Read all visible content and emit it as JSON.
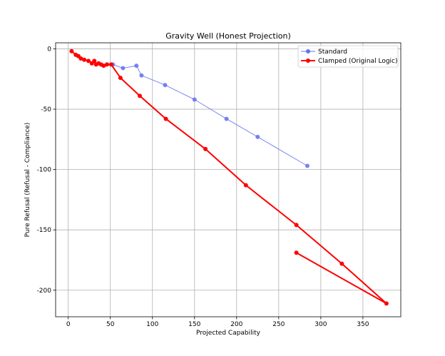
{
  "chart_data": {
    "type": "line",
    "title": "Gravity Well (Honest Projection)",
    "xlabel": "Projected Capability",
    "ylabel": "Pure Refusal (Refusal - Compliance)",
    "xlim": [
      -15,
      395
    ],
    "ylim": [
      -222,
      5
    ],
    "xticks": [
      0,
      50,
      100,
      150,
      200,
      250,
      300,
      350
    ],
    "yticks": [
      0,
      -50,
      -100,
      -150,
      -200
    ],
    "grid": true,
    "legend_position": "top-right",
    "series": [
      {
        "name": "Standard",
        "color": "#6272f0",
        "points": [
          [
            53,
            -13
          ],
          [
            65,
            -16
          ],
          [
            81,
            -14
          ],
          [
            87,
            -22
          ],
          [
            115,
            -30
          ],
          [
            150,
            -42
          ],
          [
            188,
            -58
          ],
          [
            225,
            -73
          ],
          [
            284,
            -97
          ]
        ]
      },
      {
        "name": "Clamped (Original Logic)",
        "color": "#ff0000",
        "points": [
          [
            4,
            -2
          ],
          [
            9,
            -5
          ],
          [
            12,
            -6
          ],
          [
            15,
            -8
          ],
          [
            19,
            -9
          ],
          [
            24,
            -10
          ],
          [
            28,
            -12
          ],
          [
            31,
            -10
          ],
          [
            33,
            -13
          ],
          [
            36,
            -12
          ],
          [
            39,
            -13
          ],
          [
            42,
            -14
          ],
          [
            46,
            -13
          ],
          [
            51,
            -13
          ],
          [
            62,
            -24
          ],
          [
            85,
            -39
          ],
          [
            116,
            -58
          ],
          [
            163,
            -83
          ],
          [
            211,
            -113
          ],
          [
            271,
            -146
          ],
          [
            325,
            -178
          ],
          [
            378,
            -211
          ],
          [
            271,
            -169
          ]
        ]
      }
    ]
  }
}
